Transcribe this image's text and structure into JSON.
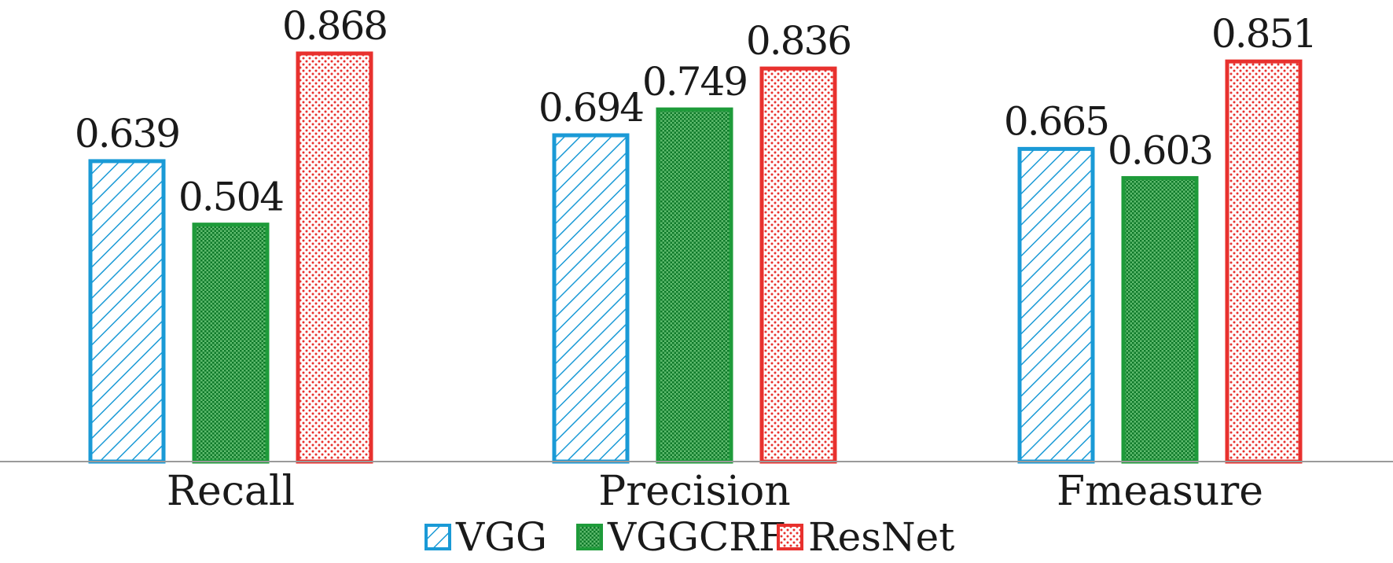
{
  "chart_data": {
    "type": "bar",
    "categories": [
      "Recall",
      "Precision",
      "Fmeasure"
    ],
    "series": [
      {
        "name": "VGG",
        "values": [
          0.639,
          0.694,
          0.665
        ],
        "color": "#1a9ad6",
        "pattern": "diagonal-hatch"
      },
      {
        "name": "VGGCRF",
        "values": [
          0.504,
          0.749,
          0.603
        ],
        "color": "#1e9b3a",
        "pattern": "dense-dots"
      },
      {
        "name": "ResNet",
        "values": [
          0.868,
          0.836,
          0.851
        ],
        "color": "#e8312e",
        "pattern": "sparse-dots"
      }
    ],
    "value_labels": [
      [
        "0.639",
        "0.694",
        "0.665"
      ],
      [
        "0.504",
        "0.749",
        "0.603"
      ],
      [
        "0.868",
        "0.836",
        "0.851"
      ]
    ],
    "title": "",
    "xlabel": "",
    "ylabel": "",
    "ylim": [
      0,
      1.0
    ],
    "grid": false,
    "legend_position": "bottom-center",
    "axis_color": "#9a9a9a"
  }
}
